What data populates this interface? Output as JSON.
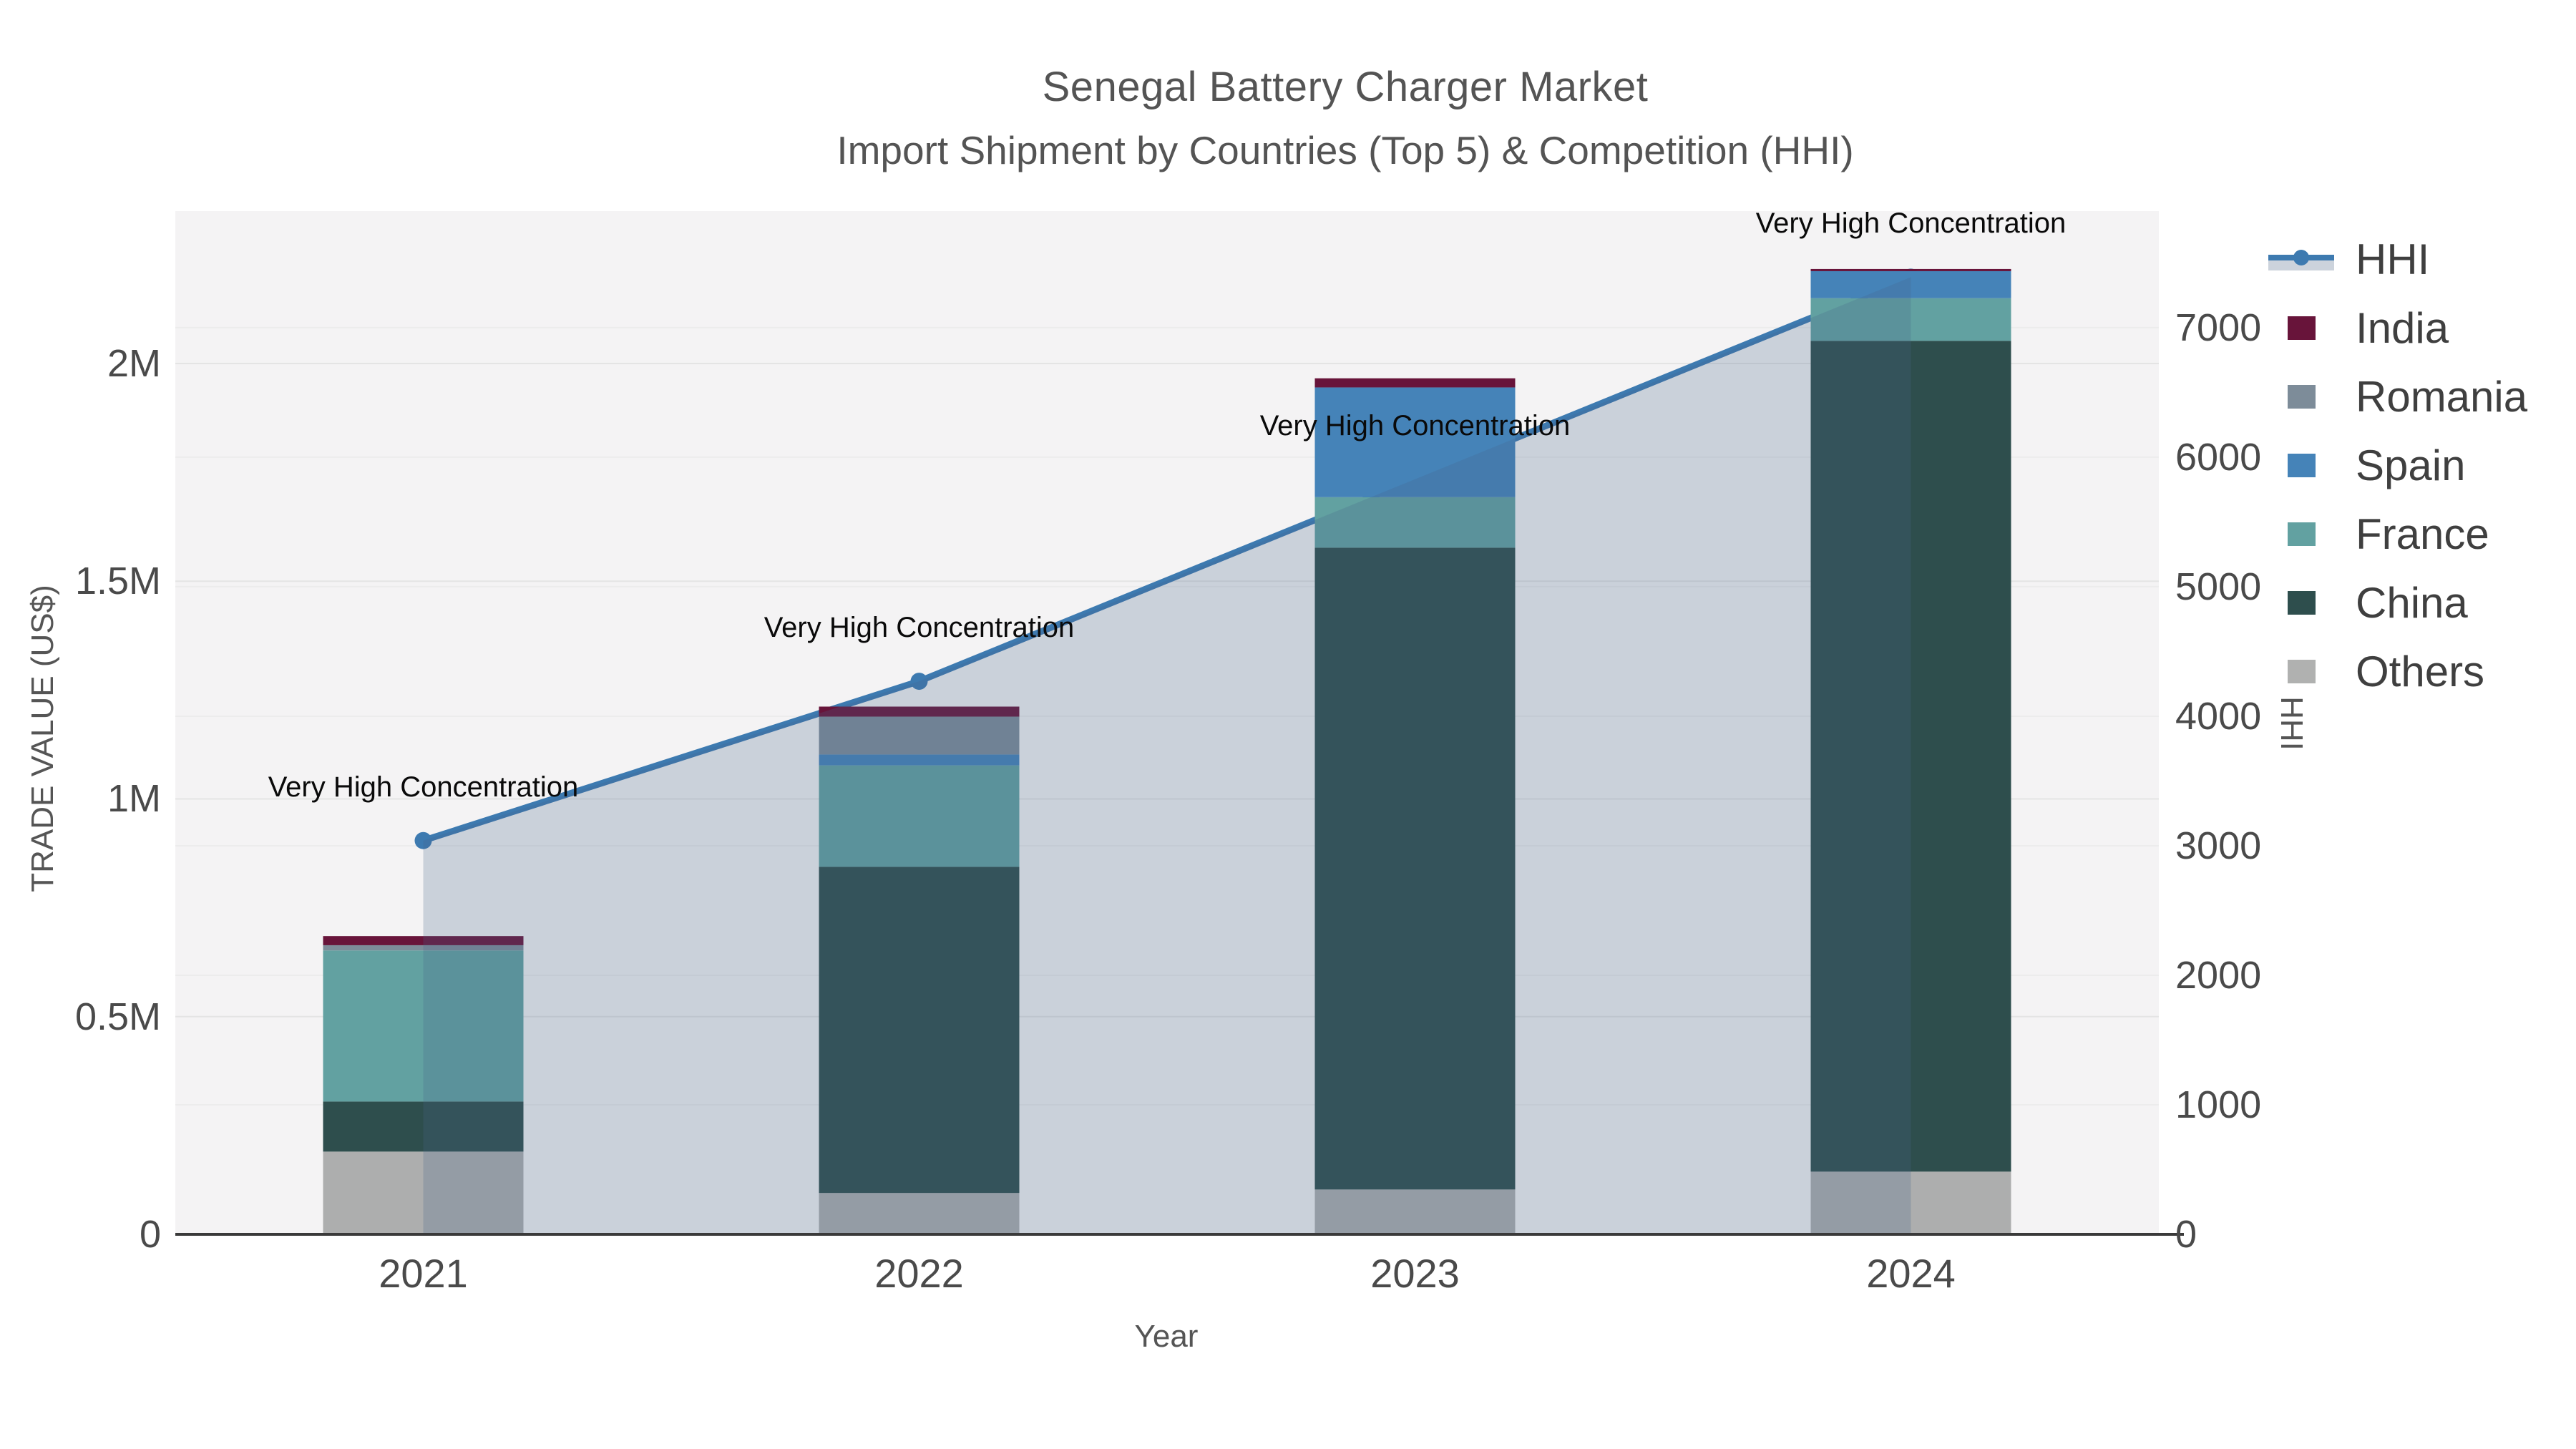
{
  "title": {
    "line1": "Senegal Battery Charger Market",
    "line2": "Import Shipment by Countries (Top 5) & Competition (HHI)"
  },
  "axes": {
    "x": {
      "title": "Year",
      "tick_labels": [
        "2021",
        "2022",
        "2023",
        "2024"
      ]
    },
    "left": {
      "title": "TRADE VALUE (US$)",
      "tick_labels": [
        "0",
        "0.5M",
        "1M",
        "1.5M",
        "2M"
      ],
      "tick_values": [
        0,
        500000,
        1000000,
        1500000,
        2000000
      ],
      "range": [
        0,
        2350000
      ]
    },
    "right": {
      "title": "HHI",
      "tick_labels": [
        "0",
        "1000",
        "2000",
        "3000",
        "4000",
        "5000",
        "6000",
        "7000"
      ],
      "tick_values": [
        0,
        1000,
        2000,
        3000,
        4000,
        5000,
        6000,
        7000
      ],
      "range": [
        0,
        7900
      ]
    }
  },
  "legend": {
    "items": [
      {
        "label": "HHI",
        "type": "line-fill",
        "color": "#3d7ab0",
        "fill": "#ccd3dc"
      },
      {
        "label": "India",
        "type": "swatch",
        "color": "#68143a"
      },
      {
        "label": "Romania",
        "type": "swatch",
        "color": "#7d8c99"
      },
      {
        "label": "Spain",
        "type": "swatch",
        "color": "#4583b8"
      },
      {
        "label": "France",
        "type": "swatch",
        "color": "#62a1a1"
      },
      {
        "label": "China",
        "type": "swatch",
        "color": "#2e4e4d"
      },
      {
        "label": "Others",
        "type": "swatch",
        "color": "#b0b1b0"
      }
    ]
  },
  "chart_data": {
    "type": "bar+line",
    "title": "Senegal Battery Charger Market — Import Shipment by Countries (Top 5) & Competition (HHI)",
    "categories": [
      "2021",
      "2022",
      "2023",
      "2024"
    ],
    "stack_order_bottom_to_top": [
      "Others",
      "China",
      "France",
      "Spain",
      "Romania",
      "India"
    ],
    "series": [
      {
        "name": "Others",
        "color": "#adaeae",
        "values": [
          190000,
          95000,
          103000,
          144000
        ]
      },
      {
        "name": "China",
        "color": "#2e4e4d",
        "values": [
          115000,
          749000,
          1474000,
          1908000
        ]
      },
      {
        "name": "France",
        "color": "#62a1a1",
        "values": [
          347000,
          233000,
          116000,
          98000
        ]
      },
      {
        "name": "Spain",
        "color": "#4583b8",
        "values": [
          0,
          25000,
          252000,
          62000
        ]
      },
      {
        "name": "Romania",
        "color": "#7d8c99",
        "values": [
          12000,
          87000,
          0,
          0
        ]
      },
      {
        "name": "India",
        "color": "#68143a",
        "values": [
          21000,
          23000,
          21000,
          5000
        ]
      }
    ],
    "bar_totals": [
      685000,
      1212000,
      1966000,
      2217000
    ],
    "line": {
      "name": "HHI",
      "color": "#3d7ab0",
      "fill_color": "rgba(70,100,140,0.24)",
      "values": [
        3040,
        4270,
        5830,
        7390
      ],
      "annotations": [
        "Very High Concentration",
        "Very High Concentration",
        "Very High Concentration",
        "Very High Concentration"
      ]
    },
    "xlabel": "Year",
    "ylabel_left": "TRADE VALUE (US$)",
    "ylabel_right": "HHI",
    "ylim_left": [
      0,
      2350000
    ],
    "ylim_right": [
      0,
      7900
    ],
    "grid": true,
    "legend_position": "right",
    "plot_bg": "#f4f3f4"
  }
}
